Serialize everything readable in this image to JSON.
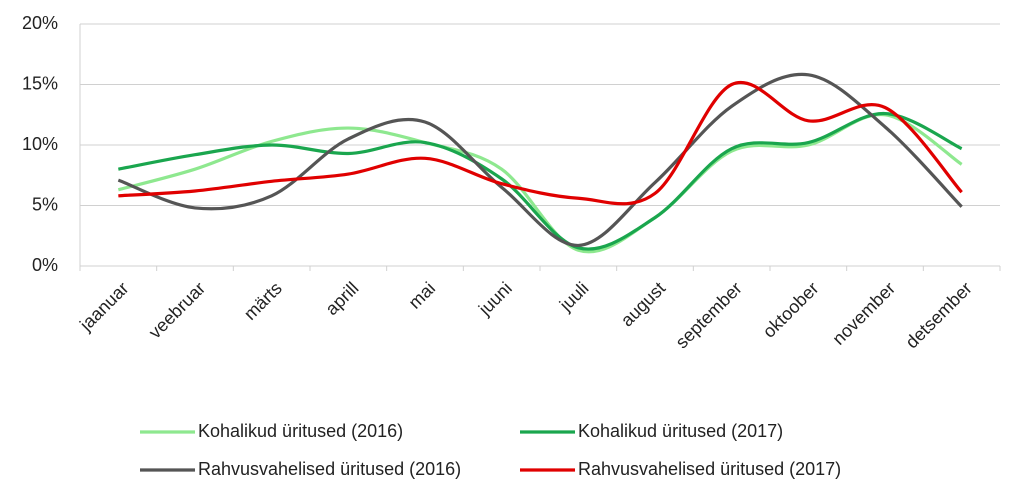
{
  "chart_data": {
    "type": "line",
    "categories": [
      "jaanuar",
      "veebruar",
      "märts",
      "aprill",
      "mai",
      "juuni",
      "juuli",
      "august",
      "september",
      "oktoober",
      "november",
      "detsember"
    ],
    "series": [
      {
        "name": "Kohalikud üritused (2016)",
        "color": "#8ee88f",
        "values": [
          6.3,
          8.0,
          10.3,
          11.4,
          10.2,
          8.0,
          1.3,
          4.0,
          9.5,
          10.0,
          12.5,
          8.4
        ]
      },
      {
        "name": "Kohalikud üritused (2017)",
        "color": "#1aa64e",
        "values": [
          8.0,
          9.2,
          10.0,
          9.3,
          10.2,
          7.2,
          1.5,
          4.0,
          9.7,
          10.2,
          12.6,
          9.7
        ]
      },
      {
        "name": "Rahvusvahelised üritused (2016)",
        "color": "#555555",
        "values": [
          7.1,
          4.8,
          5.8,
          10.5,
          11.9,
          6.5,
          1.7,
          6.9,
          13.2,
          15.8,
          11.5,
          4.9
        ]
      },
      {
        "name": "Rahvusvahelised üritused (2017)",
        "color": "#e00000",
        "values": [
          5.8,
          6.2,
          7.0,
          7.6,
          8.9,
          6.8,
          5.6,
          6.0,
          15.0,
          12.0,
          13.1,
          6.1
        ]
      }
    ],
    "ylim": [
      0,
      20
    ],
    "yticks": [
      {
        "value": 0,
        "label": "0%"
      },
      {
        "value": 5,
        "label": "5%"
      },
      {
        "value": 10,
        "label": "10%"
      },
      {
        "value": 15,
        "label": "15%"
      },
      {
        "value": 20,
        "label": "20%"
      }
    ],
    "grid": true,
    "smooth": true,
    "legend": "bottom"
  }
}
